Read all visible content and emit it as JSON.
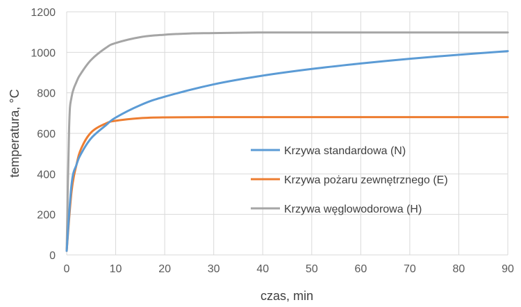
{
  "chart_data": {
    "type": "line",
    "title": "",
    "xlabel": "czas, min",
    "ylabel": "temperatura, °C",
    "xlim": [
      0,
      90
    ],
    "ylim": [
      0,
      1200
    ],
    "xticks": [
      0,
      10,
      20,
      30,
      40,
      50,
      60,
      70,
      80,
      90
    ],
    "yticks": [
      0,
      200,
      400,
      600,
      800,
      1000,
      1200
    ],
    "grid": "on",
    "legend_position": "center-right",
    "series": [
      {
        "name": "Krzywa standardowa (N)",
        "color": "#5b9bd5",
        "x": [
          0,
          1,
          2,
          3,
          5,
          8,
          10,
          15,
          20,
          30,
          40,
          50,
          60,
          70,
          80,
          90
        ],
        "y": [
          20,
          349,
          445,
          502,
          576,
          640,
          678,
          739,
          781,
          842,
          885,
          918,
          945,
          968,
          988,
          1006
        ]
      },
      {
        "name": "Krzywa pożaru zewnętrznego (E)",
        "color": "#ed7d31",
        "x": [
          0,
          1,
          2,
          3,
          5,
          8,
          10,
          15,
          20,
          30,
          40,
          50,
          60,
          70,
          80,
          90
        ],
        "y": [
          20,
          314,
          445,
          527,
          605,
          649,
          662,
          675,
          679,
          680,
          680,
          680,
          680,
          680,
          680,
          680
        ]
      },
      {
        "name": "Krzywa węglowodorowa (H)",
        "color": "#a5a5a5",
        "x": [
          0,
          0.5,
          1,
          2,
          3,
          5,
          8,
          10,
          15,
          20,
          25,
          30,
          40,
          50,
          60,
          70,
          80,
          90
        ],
        "y": [
          20,
          631,
          780,
          854,
          899,
          963,
          1022,
          1046,
          1075,
          1087,
          1093,
          1095,
          1098,
          1098,
          1098,
          1098,
          1098,
          1098
        ]
      }
    ]
  }
}
